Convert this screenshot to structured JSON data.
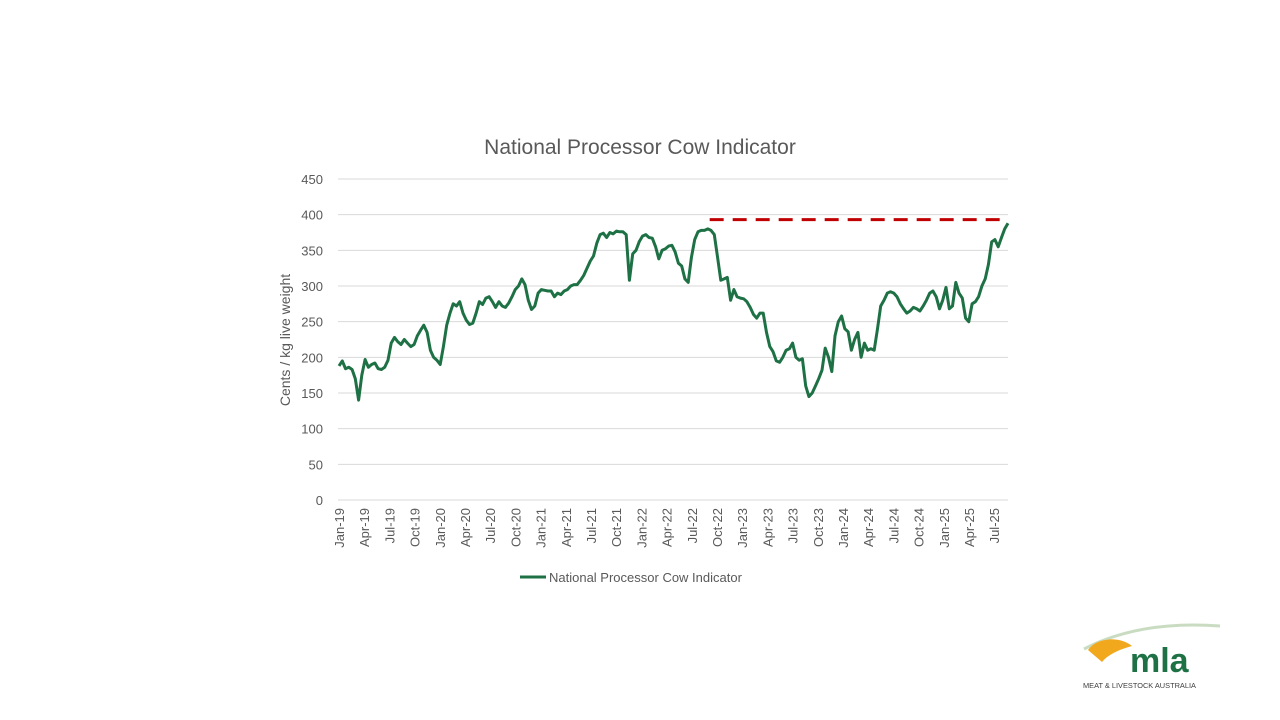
{
  "chart_data": {
    "type": "line",
    "title": "National Processor Cow Indicator",
    "xlabel": "",
    "ylabel": "Cents / kg live weight",
    "ylim": [
      0,
      450
    ],
    "yticks": [
      0,
      50,
      100,
      150,
      200,
      250,
      300,
      350,
      400,
      450
    ],
    "grid": true,
    "legend_position": "bottom",
    "x_tick_labels": [
      "Jan-19",
      "Apr-19",
      "Jul-19",
      "Oct-19",
      "Jan-20",
      "Apr-20",
      "Jul-20",
      "Oct-20",
      "Jan-21",
      "Apr-21",
      "Jul-21",
      "Oct-21",
      "Jan-22",
      "Apr-22",
      "Jul-22",
      "Oct-22",
      "Jan-23",
      "Apr-23",
      "Jul-23",
      "Oct-23",
      "Jan-24",
      "Apr-24",
      "Jul-24",
      "Oct-24",
      "Jan-25",
      "Apr-25",
      "Jul-25"
    ],
    "x_start": "Jan-19",
    "sampling": "approx. fortnightly",
    "series": [
      {
        "name": "National Processor Cow Indicator",
        "color": "#1e7145",
        "values": [
          188,
          195,
          184,
          186,
          183,
          170,
          140,
          175,
          197,
          186,
          190,
          192,
          184,
          183,
          186,
          196,
          220,
          228,
          222,
          218,
          225,
          220,
          215,
          218,
          230,
          238,
          245,
          235,
          210,
          200,
          196,
          190,
          215,
          245,
          262,
          275,
          272,
          278,
          262,
          252,
          246,
          248,
          262,
          278,
          274,
          283,
          285,
          278,
          270,
          278,
          272,
          270,
          276,
          285,
          295,
          300,
          310,
          302,
          280,
          267,
          272,
          290,
          295,
          294,
          293,
          293,
          285,
          290,
          288,
          293,
          295,
          300,
          302,
          302,
          308,
          315,
          325,
          335,
          342,
          360,
          372,
          374,
          368,
          375,
          373,
          377,
          376,
          376,
          372,
          308,
          345,
          350,
          362,
          370,
          372,
          368,
          367,
          355,
          338,
          350,
          352,
          356,
          357,
          348,
          332,
          328,
          310,
          305,
          340,
          365,
          376,
          378,
          378,
          380,
          378,
          372,
          340,
          308,
          310,
          312,
          280,
          295,
          285,
          283,
          282,
          278,
          270,
          260,
          255,
          262,
          262,
          235,
          215,
          208,
          195,
          193,
          200,
          210,
          212,
          220,
          200,
          196,
          198,
          160,
          145,
          150,
          160,
          170,
          182,
          213,
          200,
          180,
          230,
          250,
          258,
          240,
          236,
          210,
          225,
          235,
          200,
          220,
          210,
          212,
          210,
          240,
          272,
          280,
          290,
          292,
          290,
          285,
          275,
          268,
          262,
          265,
          270,
          268,
          265,
          272,
          280,
          290,
          293,
          285,
          268,
          280,
          298,
          268,
          272,
          305,
          290,
          283,
          255,
          250,
          275,
          278,
          285,
          300,
          310,
          330,
          362,
          365,
          355,
          368,
          380,
          388
        ]
      }
    ]
  },
  "dashed_reference": {
    "label": "",
    "value": 393,
    "color": "#c00000",
    "start": "Sep-22"
  },
  "legend": {
    "label": "National Processor Cow Indicator"
  },
  "logo": {
    "wordmark": "mla",
    "tagline": "MEAT & LIVESTOCK AUSTRALIA"
  }
}
